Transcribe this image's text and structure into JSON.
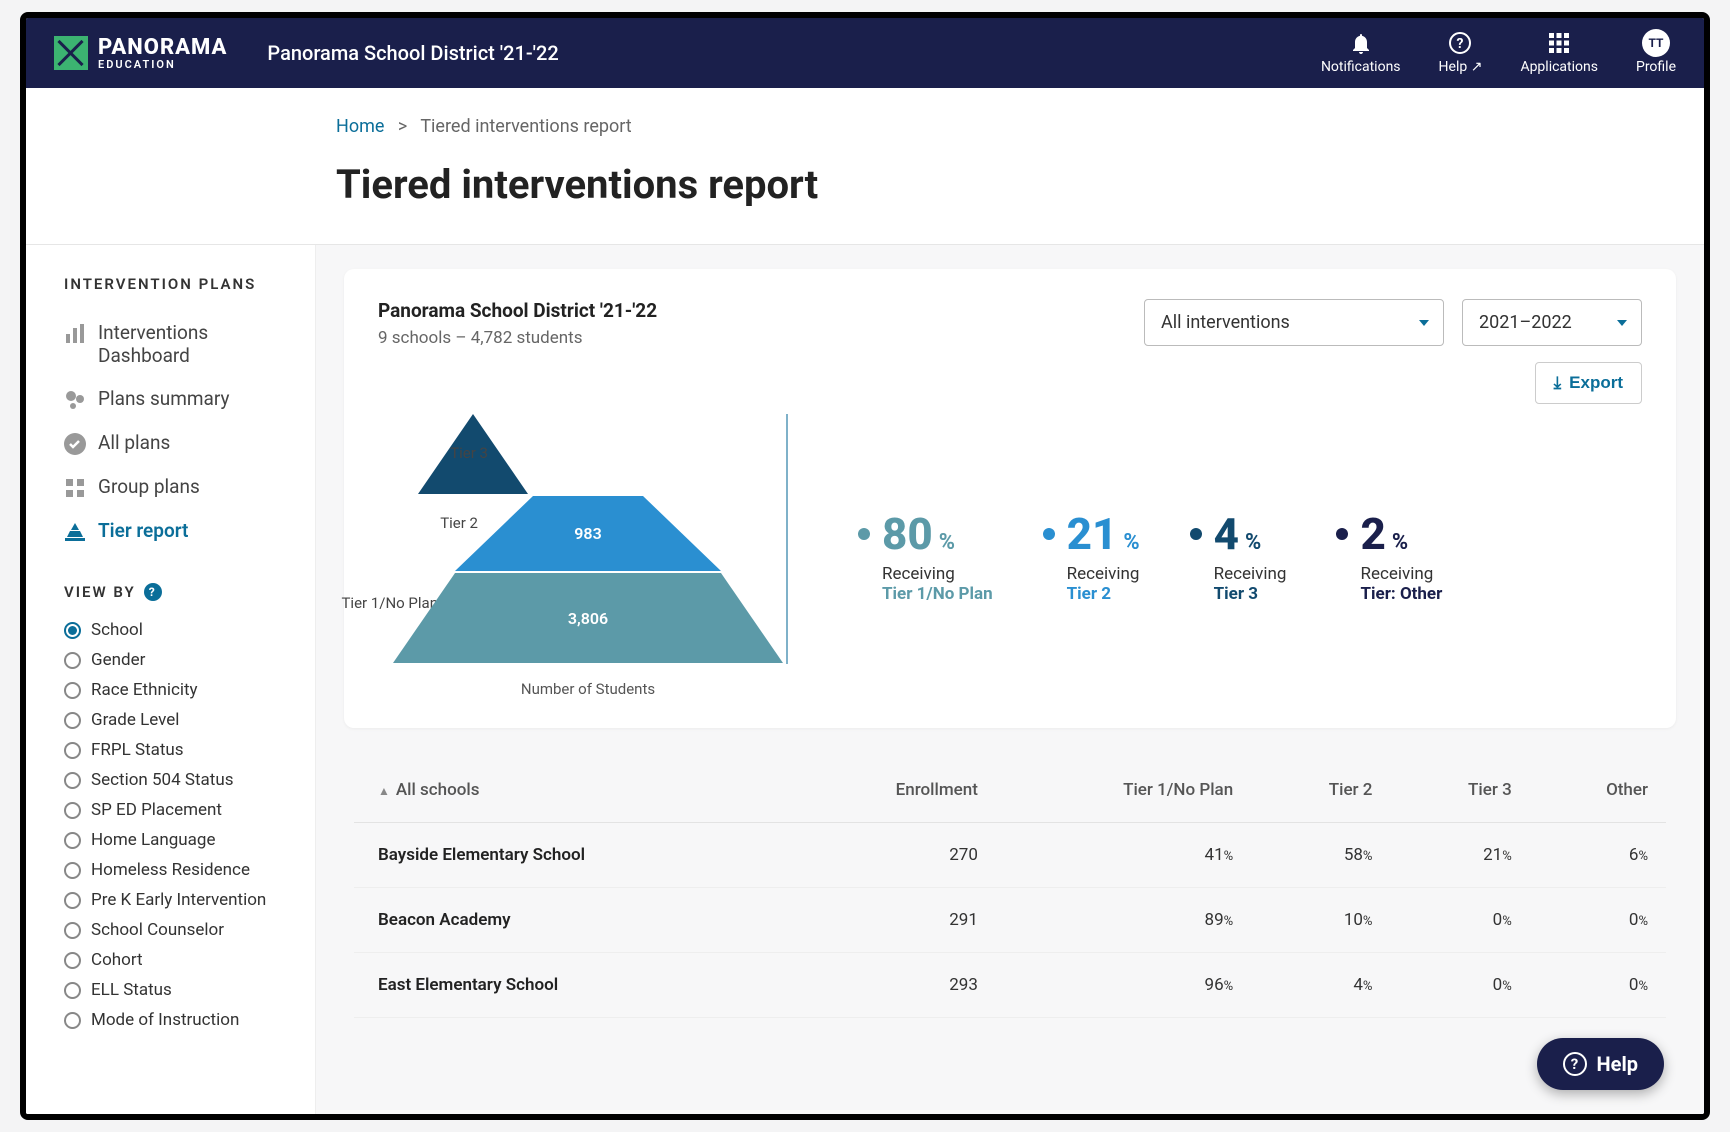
{
  "brand": {
    "name": "PANORAMA",
    "sub": "EDUCATION"
  },
  "district_title": "Panorama School District '21-'22",
  "topnav": {
    "notifications": "Notifications",
    "help": "Help",
    "applications": "Applications",
    "profile": "Profile",
    "avatar_initials": "TT"
  },
  "breadcrumb": {
    "home": "Home",
    "sep": ">",
    "current": "Tiered interventions report"
  },
  "page_title": "Tiered interventions report",
  "sidebar": {
    "section_label": "INTERVENTION PLANS",
    "items": [
      {
        "label": "Interventions Dashboard",
        "icon": "bar-chart-icon",
        "active": false
      },
      {
        "label": "Plans summary",
        "icon": "dots-icon",
        "active": false
      },
      {
        "label": "All plans",
        "icon": "check-circle-icon",
        "active": false
      },
      {
        "label": "Group plans",
        "icon": "grid-icon",
        "active": false
      },
      {
        "label": "Tier report",
        "icon": "pyramid-icon",
        "active": true
      }
    ],
    "viewby_label": "VIEW BY",
    "viewby_options": [
      "School",
      "Gender",
      "Race Ethnicity",
      "Grade Level",
      "FRPL Status",
      "Section 504 Status",
      "SP ED Placement",
      "Home Language",
      "Homeless Residence",
      "Pre K Early Intervention",
      "School Counselor",
      "Cohort",
      "ELL Status",
      "Mode of Instruction"
    ],
    "viewby_selected": "School"
  },
  "card": {
    "title": "Panorama School District '21-'22",
    "subtitle": "9 schools – 4,782 students",
    "select_interventions": "All interventions",
    "select_year": "2021–2022",
    "export_label": "Export"
  },
  "pyramid": {
    "type": "pyramid",
    "caption": "Number of Students",
    "tiers": [
      {
        "label": "Tier 3",
        "value": "168",
        "color": "#124a6e"
      },
      {
        "label": "Tier 2",
        "value": "983",
        "color": "#2a8fd1"
      },
      {
        "label": "Tier 1/No Plan",
        "value": "3,806",
        "color": "#5c9aa8"
      }
    ],
    "divider_color": "#7fb1c9"
  },
  "stats": [
    {
      "pct": "80",
      "label": "Receiving",
      "tier": "Tier 1/No Plan",
      "color": "#5c9aa8"
    },
    {
      "pct": "21",
      "label": "Receiving",
      "tier": "Tier 2",
      "color": "#2a8fd1"
    },
    {
      "pct": "4",
      "label": "Receiving",
      "tier": "Tier 3",
      "color": "#124a6e"
    },
    {
      "pct": "2",
      "label": "Receiving",
      "tier": "Tier: Other",
      "color": "#1a1f4b"
    }
  ],
  "table": {
    "sort_label": "All schools",
    "columns": [
      "Enrollment",
      "Tier 1/No Plan",
      "Tier 2",
      "Tier 3",
      "Other"
    ],
    "rows": [
      {
        "name": "Bayside Elementary School",
        "enrollment": "270",
        "t1": "41",
        "t2": "58",
        "t3": "21",
        "other": "6"
      },
      {
        "name": "Beacon Academy",
        "enrollment": "291",
        "t1": "89",
        "t2": "10",
        "t3": "0",
        "other": "0"
      },
      {
        "name": "East Elementary School",
        "enrollment": "293",
        "t1": "96",
        "t2": "4",
        "t3": "0",
        "other": "0"
      }
    ]
  },
  "help_button": "Help",
  "colors": {
    "navy": "#1a1f4b",
    "link": "#0b6e99",
    "bg": "#f7f7f8"
  }
}
